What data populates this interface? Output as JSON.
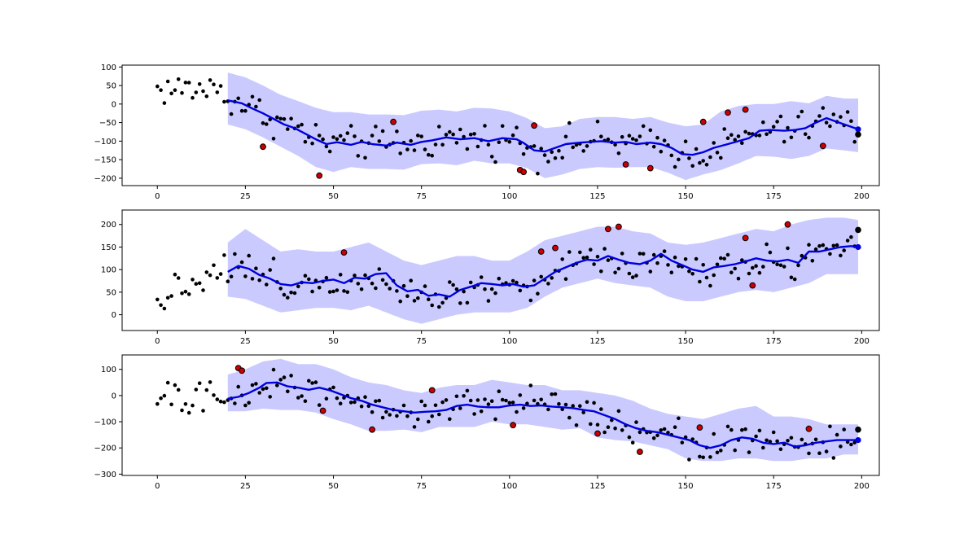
{
  "chart_data": [
    {
      "type": "line",
      "xlim": [
        -10,
        205
      ],
      "ylim": [
        -220,
        105
      ],
      "xticks": [
        0,
        25,
        50,
        75,
        100,
        125,
        150,
        175,
        200
      ],
      "yticks": [
        100,
        50,
        0,
        -50,
        -100,
        -150,
        -200
      ],
      "colors": {
        "band": "#8080ff",
        "line": "#0000dd",
        "point": "#000000",
        "outlier": "#cc0000"
      },
      "band_knots": {
        "x": [
          20,
          25,
          30,
          35,
          40,
          45,
          50,
          55,
          60,
          65,
          70,
          75,
          80,
          85,
          90,
          95,
          100,
          105,
          110,
          115,
          120,
          125,
          130,
          135,
          140,
          145,
          150,
          155,
          160,
          165,
          170,
          175,
          180,
          185,
          190,
          195,
          199
        ],
        "lower": [
          -55,
          -68,
          -90,
          -115,
          -140,
          -170,
          -183,
          -170,
          -175,
          -175,
          -177,
          -162,
          -160,
          -165,
          -153,
          -160,
          -160,
          -173,
          -200,
          -190,
          -175,
          -170,
          -172,
          -170,
          -170,
          -185,
          -205,
          -190,
          -178,
          -160,
          -140,
          -142,
          -148,
          -140,
          -120,
          -125,
          -130
        ],
        "upper": [
          85,
          72,
          50,
          25,
          8,
          -10,
          -22,
          -22,
          -28,
          -28,
          -30,
          -18,
          -15,
          -20,
          -10,
          -12,
          -20,
          -38,
          -65,
          -60,
          -40,
          -35,
          -35,
          -40,
          -35,
          -50,
          -60,
          -55,
          -20,
          -5,
          0,
          0,
          8,
          2,
          22,
          15,
          15
        ]
      },
      "mean_knots": {
        "x": [
          20,
          24,
          27,
          30,
          33,
          36,
          39,
          42,
          45,
          48,
          51,
          55,
          58,
          61,
          65,
          68,
          72,
          75,
          78,
          82,
          86,
          90,
          94,
          98,
          102,
          104,
          107,
          110,
          113,
          116,
          120,
          123,
          126,
          130,
          133,
          136,
          140,
          143,
          146,
          149,
          152,
          155,
          158,
          162,
          165,
          168,
          171,
          174,
          178,
          181,
          184,
          187,
          190,
          193,
          196,
          199
        ],
        "y": [
          10,
          2,
          -12,
          -25,
          -40,
          -55,
          -65,
          -80,
          -95,
          -108,
          -103,
          -110,
          -102,
          -108,
          -112,
          -104,
          -110,
          -102,
          -98,
          -90,
          -95,
          -92,
          -100,
          -92,
          -95,
          -105,
          -125,
          -128,
          -118,
          -108,
          -104,
          -102,
          -100,
          -104,
          -102,
          -108,
          -104,
          -108,
          -118,
          -135,
          -137,
          -130,
          -118,
          -108,
          -100,
          -92,
          -72,
          -70,
          -72,
          -70,
          -65,
          -50,
          -38,
          -48,
          -58,
          -68
        ]
      },
      "last_point": {
        "x": 199,
        "y": -82
      },
      "outliers": [
        [
          30,
          -115
        ],
        [
          46,
          -193
        ],
        [
          67,
          -48
        ],
        [
          103,
          -178
        ],
        [
          104,
          -183
        ],
        [
          107,
          -58
        ],
        [
          133,
          -163
        ],
        [
          140,
          -173
        ],
        [
          155,
          -48
        ],
        [
          162,
          -23
        ],
        [
          167,
          -15
        ],
        [
          189,
          -113
        ]
      ]
    },
    {
      "type": "line",
      "xlim": [
        -10,
        205
      ],
      "ylim": [
        -35,
        232
      ],
      "xticks": [
        0,
        25,
        50,
        75,
        100,
        125,
        150,
        175,
        200
      ],
      "yticks": [
        200,
        150,
        100,
        50,
        0
      ],
      "colors": {
        "band": "#8080ff",
        "line": "#0000dd",
        "point": "#000000",
        "outlier": "#cc0000"
      },
      "band_knots": {
        "x": [
          20,
          25,
          30,
          35,
          40,
          45,
          50,
          55,
          60,
          65,
          70,
          75,
          80,
          85,
          90,
          95,
          100,
          105,
          110,
          115,
          120,
          125,
          130,
          135,
          140,
          145,
          150,
          155,
          160,
          165,
          170,
          175,
          180,
          185,
          190,
          195,
          199
        ],
        "lower": [
          40,
          35,
          20,
          5,
          10,
          15,
          15,
          10,
          20,
          5,
          -10,
          -20,
          -10,
          0,
          5,
          5,
          5,
          15,
          40,
          60,
          70,
          80,
          70,
          65,
          60,
          40,
          30,
          30,
          40,
          50,
          55,
          50,
          60,
          70,
          90,
          90,
          90
        ],
        "upper": [
          160,
          190,
          165,
          140,
          145,
          140,
          140,
          150,
          160,
          140,
          120,
          110,
          120,
          130,
          130,
          120,
          120,
          140,
          165,
          175,
          185,
          195,
          195,
          185,
          180,
          160,
          155,
          160,
          170,
          180,
          190,
          185,
          200,
          210,
          215,
          215,
          210
        ]
      },
      "mean_knots": {
        "x": [
          20,
          23,
          26,
          29,
          32,
          35,
          38,
          41,
          44,
          47,
          50,
          53,
          56,
          59,
          62,
          65,
          68,
          71,
          74,
          77,
          80,
          83,
          86,
          89,
          92,
          95,
          98,
          101,
          104,
          107,
          110,
          113,
          116,
          119,
          122,
          125,
          128,
          131,
          134,
          137,
          140,
          143,
          146,
          149,
          152,
          155,
          158,
          161,
          164,
          167,
          170,
          173,
          176,
          179,
          182,
          185,
          188,
          191,
          194,
          197,
          199
        ],
        "y": [
          95,
          108,
          102,
          88,
          80,
          68,
          65,
          72,
          70,
          75,
          78,
          70,
          82,
          80,
          90,
          92,
          65,
          52,
          55,
          42,
          45,
          40,
          55,
          62,
          70,
          68,
          65,
          68,
          62,
          65,
          80,
          95,
          105,
          115,
          122,
          120,
          130,
          122,
          115,
          112,
          120,
          135,
          120,
          110,
          100,
          95,
          105,
          108,
          112,
          118,
          125,
          120,
          118,
          122,
          115,
          140,
          140,
          145,
          150,
          152,
          150
        ]
      },
      "last_point": {
        "x": 199,
        "y": 188
      },
      "outliers": [
        [
          53,
          138
        ],
        [
          109,
          140
        ],
        [
          113,
          148
        ],
        [
          128,
          190
        ],
        [
          131,
          195
        ],
        [
          167,
          170
        ],
        [
          169,
          65
        ],
        [
          179,
          200
        ]
      ]
    },
    {
      "type": "line",
      "xlim": [
        -10,
        205
      ],
      "ylim": [
        -305,
        155
      ],
      "xticks": [
        0,
        25,
        50,
        75,
        100,
        125,
        150,
        175,
        200
      ],
      "yticks": [
        100,
        0,
        -100,
        -200,
        -300
      ],
      "colors": {
        "band": "#8080ff",
        "line": "#0000dd",
        "point": "#000000",
        "outlier": "#cc0000"
      },
      "band_knots": {
        "x": [
          20,
          25,
          30,
          35,
          40,
          45,
          50,
          55,
          60,
          65,
          70,
          75,
          80,
          85,
          90,
          95,
          100,
          105,
          110,
          115,
          120,
          125,
          130,
          135,
          140,
          145,
          150,
          155,
          160,
          165,
          170,
          175,
          180,
          185,
          190,
          195,
          199
        ],
        "lower": [
          -60,
          -60,
          -50,
          -55,
          -55,
          -65,
          -90,
          -110,
          -135,
          -135,
          -130,
          -140,
          -120,
          -120,
          -120,
          -100,
          -110,
          -110,
          -120,
          -130,
          -125,
          -160,
          -170,
          -175,
          -190,
          -205,
          -240,
          -250,
          -250,
          -240,
          -240,
          -250,
          -250,
          -240,
          -240,
          -225,
          -225
        ],
        "upper": [
          80,
          100,
          130,
          140,
          120,
          120,
          100,
          70,
          50,
          40,
          20,
          10,
          30,
          40,
          40,
          60,
          50,
          40,
          40,
          20,
          20,
          10,
          0,
          -20,
          -50,
          -70,
          -80,
          -90,
          -70,
          -50,
          -40,
          -80,
          -80,
          -90,
          -110,
          -110,
          -110
        ]
      },
      "mean_knots": {
        "x": [
          20,
          23,
          26,
          29,
          31,
          34,
          37,
          40,
          43,
          46,
          49,
          52,
          55,
          58,
          61,
          64,
          67,
          70,
          73,
          76,
          79,
          82,
          85,
          88,
          91,
          94,
          97,
          100,
          103,
          106,
          109,
          112,
          115,
          118,
          121,
          124,
          127,
          130,
          133,
          136,
          139,
          142,
          145,
          148,
          151,
          154,
          157,
          160,
          163,
          166,
          169,
          172,
          175,
          178,
          181,
          184,
          187,
          190,
          193,
          196,
          199
        ],
        "y": [
          -12,
          -5,
          10,
          30,
          48,
          50,
          35,
          30,
          22,
          30,
          20,
          5,
          -10,
          -20,
          -35,
          -45,
          -55,
          -60,
          -65,
          -62,
          -60,
          -55,
          -40,
          -35,
          -42,
          -45,
          -45,
          -38,
          -35,
          -40,
          -38,
          -42,
          -45,
          -48,
          -55,
          -60,
          -75,
          -90,
          -110,
          -125,
          -135,
          -140,
          -150,
          -160,
          -170,
          -190,
          -200,
          -190,
          -170,
          -160,
          -165,
          -180,
          -185,
          -180,
          -195,
          -190,
          -180,
          -175,
          -170,
          -170,
          -170
        ]
      },
      "last_point": {
        "x": 199,
        "y": -130
      },
      "outliers": [
        [
          23,
          105
        ],
        [
          24,
          95
        ],
        [
          47,
          -58
        ],
        [
          61,
          -130
        ],
        [
          78,
          20
        ],
        [
          101,
          -113
        ],
        [
          125,
          -145
        ],
        [
          137,
          -215
        ],
        [
          154,
          -122
        ],
        [
          185,
          -127
        ]
      ]
    }
  ]
}
